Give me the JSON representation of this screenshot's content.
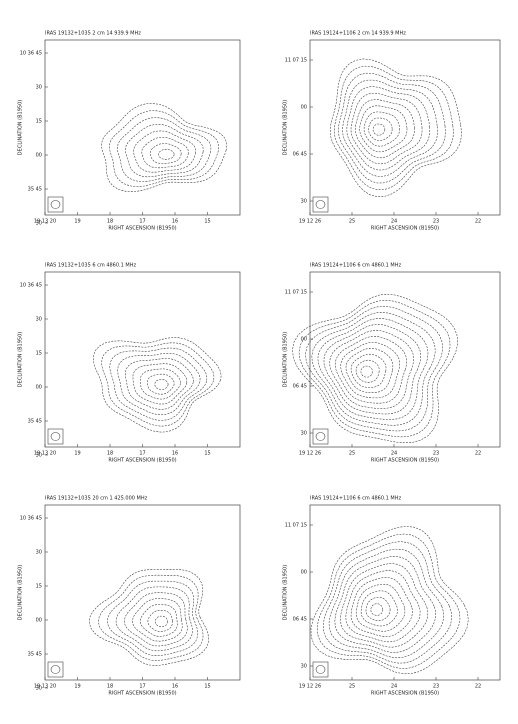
{
  "panels": [
    {
      "title": "IRAS 19132+1035   2 cm   14 939.9 MHz",
      "xlabel": "RIGHT ASCENSION (B1950)",
      "ylabel": "DECLINATION (B1950)",
      "xticks": [
        "19 13 20",
        "19",
        "18",
        "17",
        "16",
        "15"
      ],
      "yticks": [
        "10 36 45",
        "30",
        "15",
        "00",
        "35 45",
        "30"
      ]
    },
    {
      "title": "IRAS 19124+1106   2 cm   14 939.9 MHz",
      "xlabel": "RIGHT ASCENSION (B1950)",
      "ylabel": "DECLINATION (B1950)",
      "xticks": [
        "19 12 26",
        "25",
        "24",
        "23",
        "22"
      ],
      "yticks": [
        "11 07 15",
        "00",
        "06 45",
        "30"
      ]
    },
    {
      "title": "IRAS 19132+1035   6 cm   4860.1 MHz",
      "xlabel": "RIGHT ASCENSION (B1950)",
      "ylabel": "DECLINATION (B1950)",
      "xticks": [
        "19 13 20",
        "19",
        "18",
        "17",
        "16",
        "15"
      ],
      "yticks": [
        "10 36 45",
        "30",
        "15",
        "00",
        "35 45",
        "30"
      ]
    },
    {
      "title": "IRAS 19124+1106   6 cm   4860.1 MHz",
      "xlabel": "RIGHT ASCENSION (B1950)",
      "ylabel": "DECLINATION (B1950)",
      "xticks": [
        "19 12 26",
        "25",
        "24",
        "23",
        "22"
      ],
      "yticks": [
        "11 07 15",
        "00",
        "06 45",
        "30"
      ]
    },
    {
      "title": "IRAS 19132+1035   20 cm   1 425.000 MHz",
      "xlabel": "RIGHT ASCENSION (B1950)",
      "ylabel": "DECLINATION (B1950)",
      "xticks": [
        "19 13 20",
        "19",
        "18",
        "17",
        "16",
        "15"
      ],
      "yticks": [
        "10 36 45",
        "30",
        "15",
        "00",
        "35 45",
        "30"
      ]
    },
    {
      "title": "IRAS 19124+1106   6 cm   4860.1 MHz",
      "xlabel": "RIGHT ASCENSION (B1950)",
      "ylabel": "DECLINATION (B1950)",
      "xticks": [
        "19 12 26",
        "25",
        "24",
        "23",
        "22"
      ],
      "yticks": [
        "11 07 15",
        "00",
        "06 45",
        "30"
      ]
    }
  ]
}
